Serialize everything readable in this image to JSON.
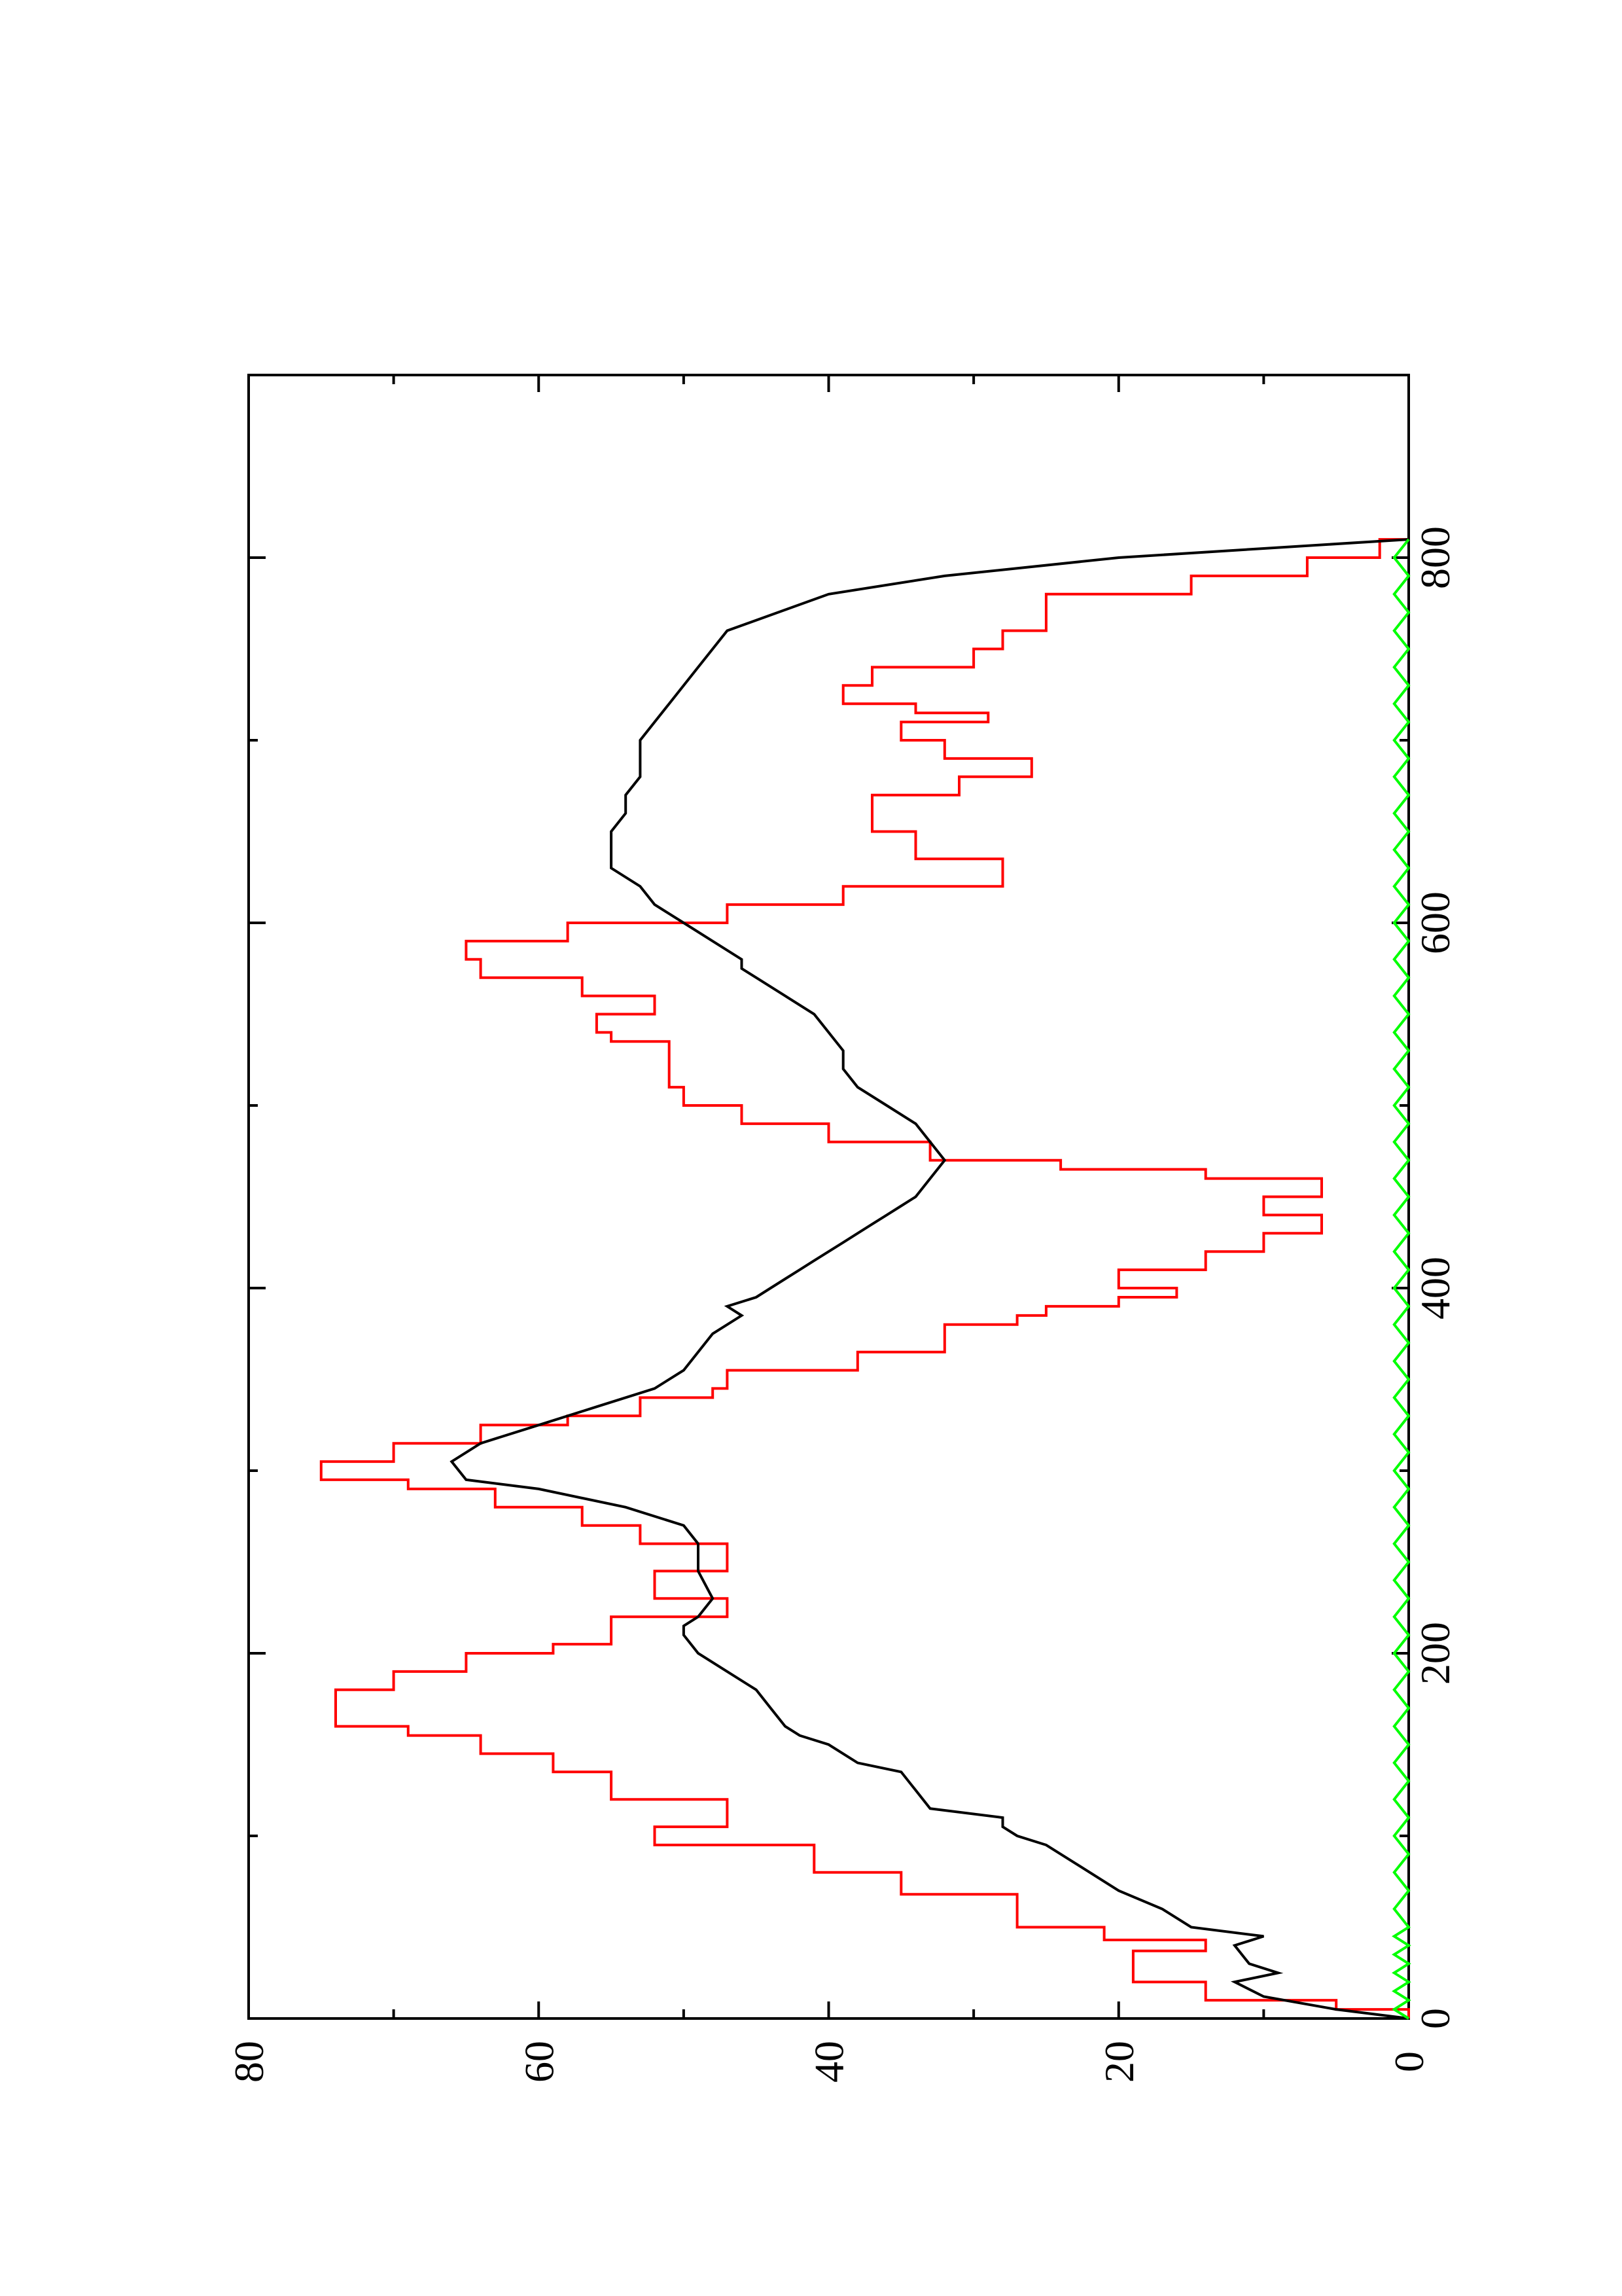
{
  "chart_data": {
    "type": "line",
    "orientation": "rotated 90 degrees counter-clockwise (x axis runs vertically, y axis horizontally)",
    "title": "",
    "xlabel": "",
    "ylabel": "",
    "xlim": [
      0,
      900
    ],
    "ylim": [
      0,
      80
    ],
    "x_ticks": [
      0,
      200,
      400,
      600,
      800
    ],
    "x_ticks_unlabeled": [
      100,
      300,
      500,
      700
    ],
    "y_ticks": [
      0,
      20,
      40,
      60,
      80
    ],
    "y_ticks_unlabeled": [
      10,
      30,
      50,
      70
    ],
    "grid": false,
    "legend": "none",
    "series": [
      {
        "color": "#ff0000",
        "step": true,
        "points": [
          [
            0,
            0
          ],
          [
            5,
            5
          ],
          [
            10,
            14
          ],
          [
            20,
            14
          ],
          [
            20,
            19
          ],
          [
            30,
            19
          ],
          [
            37,
            14
          ],
          [
            43,
            21
          ],
          [
            50,
            27
          ],
          [
            60,
            27
          ],
          [
            68,
            35
          ],
          [
            80,
            41
          ],
          [
            95,
            52
          ],
          [
            100,
            52
          ],
          [
            105,
            47
          ],
          [
            115,
            47
          ],
          [
            120,
            55
          ],
          [
            130,
            55
          ],
          [
            135,
            59
          ],
          [
            145,
            64
          ],
          [
            150,
            64
          ],
          [
            155,
            69
          ],
          [
            160,
            74
          ],
          [
            175,
            74
          ],
          [
            180,
            70
          ],
          [
            185,
            70
          ],
          [
            190,
            65
          ],
          [
            200,
            59
          ],
          [
            205,
            55
          ],
          [
            215,
            55
          ],
          [
            220,
            47
          ],
          [
            225,
            47
          ],
          [
            230,
            52
          ],
          [
            240,
            52
          ],
          [
            245,
            47
          ],
          [
            255,
            47
          ],
          [
            260,
            53
          ],
          [
            265,
            53
          ],
          [
            270,
            57
          ],
          [
            280,
            63
          ],
          [
            290,
            69
          ],
          [
            295,
            75
          ],
          [
            305,
            70
          ],
          [
            315,
            64
          ],
          [
            325,
            58
          ],
          [
            330,
            53
          ],
          [
            340,
            48
          ],
          [
            345,
            47
          ],
          [
            355,
            38
          ],
          [
            365,
            32
          ],
          [
            380,
            27
          ],
          [
            385,
            25
          ],
          [
            390,
            20
          ],
          [
            395,
            16
          ],
          [
            400,
            20
          ],
          [
            405,
            20
          ],
          [
            410,
            14
          ],
          [
            415,
            14
          ],
          [
            420,
            10
          ],
          [
            430,
            6
          ],
          [
            440,
            10
          ],
          [
            450,
            6
          ],
          [
            460,
            14
          ],
          [
            465,
            24
          ],
          [
            470,
            33
          ],
          [
            480,
            40
          ],
          [
            490,
            46
          ],
          [
            500,
            50
          ],
          [
            510,
            51
          ],
          [
            530,
            51
          ],
          [
            535,
            55
          ],
          [
            540,
            56
          ],
          [
            545,
            56
          ],
          [
            550,
            52
          ],
          [
            560,
            57
          ],
          [
            570,
            64
          ],
          [
            580,
            65
          ],
          [
            590,
            58
          ],
          [
            600,
            47
          ],
          [
            610,
            39
          ],
          [
            620,
            28
          ],
          [
            635,
            34
          ],
          [
            650,
            37
          ],
          [
            660,
            37
          ],
          [
            670,
            31
          ],
          [
            680,
            26
          ],
          [
            690,
            32
          ],
          [
            700,
            35
          ],
          [
            710,
            29
          ],
          [
            715,
            34
          ],
          [
            720,
            39
          ],
          [
            730,
            37
          ],
          [
            740,
            30
          ],
          [
            750,
            28
          ],
          [
            760,
            25
          ],
          [
            780,
            15
          ],
          [
            790,
            7
          ],
          [
            800,
            2
          ],
          [
            810,
            0
          ]
        ]
      },
      {
        "color": "#000000",
        "step": false,
        "points": [
          [
            0,
            0
          ],
          [
            5,
            5
          ],
          [
            12,
            10
          ],
          [
            20,
            12
          ],
          [
            25,
            9
          ],
          [
            30,
            11
          ],
          [
            40,
            12
          ],
          [
            45,
            10
          ],
          [
            50,
            15
          ],
          [
            60,
            17
          ],
          [
            70,
            20
          ],
          [
            85,
            23
          ],
          [
            95,
            25
          ],
          [
            100,
            27
          ],
          [
            105,
            28
          ],
          [
            110,
            28
          ],
          [
            115,
            33
          ],
          [
            125,
            34
          ],
          [
            135,
            35
          ],
          [
            140,
            38
          ],
          [
            150,
            40
          ],
          [
            155,
            42
          ],
          [
            160,
            43
          ],
          [
            170,
            44
          ],
          [
            180,
            45
          ],
          [
            190,
            47
          ],
          [
            200,
            49
          ],
          [
            210,
            50
          ],
          [
            215,
            50
          ],
          [
            220,
            49
          ],
          [
            230,
            48
          ],
          [
            245,
            49
          ],
          [
            260,
            49
          ],
          [
            270,
            50
          ],
          [
            280,
            54
          ],
          [
            290,
            60
          ],
          [
            295,
            65
          ],
          [
            305,
            66
          ],
          [
            315,
            64
          ],
          [
            325,
            60
          ],
          [
            335,
            56
          ],
          [
            345,
            52
          ],
          [
            355,
            50
          ],
          [
            365,
            49
          ],
          [
            375,
            48
          ],
          [
            385,
            46
          ],
          [
            390,
            47
          ],
          [
            395,
            45
          ],
          [
            400,
            44
          ],
          [
            405,
            43
          ],
          [
            410,
            42
          ],
          [
            415,
            41
          ],
          [
            420,
            40
          ],
          [
            425,
            39
          ],
          [
            430,
            38
          ],
          [
            435,
            37
          ],
          [
            440,
            36
          ],
          [
            445,
            35
          ],
          [
            450,
            34
          ],
          [
            460,
            33
          ],
          [
            470,
            32
          ],
          [
            480,
            33
          ],
          [
            490,
            34
          ],
          [
            500,
            36
          ],
          [
            510,
            38
          ],
          [
            520,
            39
          ],
          [
            530,
            39
          ],
          [
            540,
            40
          ],
          [
            550,
            41
          ],
          [
            560,
            43
          ],
          [
            570,
            45
          ],
          [
            575,
            46
          ],
          [
            580,
            46
          ],
          [
            590,
            48
          ],
          [
            600,
            50
          ],
          [
            610,
            52
          ],
          [
            620,
            53
          ],
          [
            630,
            55
          ],
          [
            640,
            55
          ],
          [
            650,
            55
          ],
          [
            660,
            54
          ],
          [
            670,
            54
          ],
          [
            680,
            53
          ],
          [
            690,
            53
          ],
          [
            700,
            53
          ],
          [
            710,
            52
          ],
          [
            720,
            51
          ],
          [
            730,
            50
          ],
          [
            740,
            49
          ],
          [
            750,
            48
          ],
          [
            760,
            47
          ],
          [
            780,
            40
          ],
          [
            790,
            32
          ],
          [
            800,
            20
          ],
          [
            805,
            10
          ],
          [
            810,
            0
          ]
        ]
      },
      {
        "color": "#00ff00",
        "step": false,
        "points": [
          [
            0,
            0
          ],
          [
            5,
            1
          ],
          [
            10,
            0
          ],
          [
            15,
            1
          ],
          [
            20,
            0
          ],
          [
            25,
            1
          ],
          [
            30,
            0
          ],
          [
            35,
            1
          ],
          [
            40,
            0
          ],
          [
            45,
            1
          ],
          [
            50,
            0
          ],
          [
            60,
            1
          ],
          [
            70,
            0
          ],
          [
            80,
            1
          ],
          [
            90,
            0
          ],
          [
            100,
            1
          ],
          [
            110,
            0
          ],
          [
            120,
            1
          ],
          [
            130,
            0
          ],
          [
            140,
            1
          ],
          [
            150,
            0
          ],
          [
            160,
            1
          ],
          [
            170,
            0
          ],
          [
            180,
            1
          ],
          [
            190,
            0
          ],
          [
            200,
            1
          ],
          [
            210,
            0
          ],
          [
            220,
            1
          ],
          [
            230,
            0
          ],
          [
            240,
            1
          ],
          [
            250,
            0
          ],
          [
            260,
            1
          ],
          [
            270,
            0
          ],
          [
            280,
            1
          ],
          [
            290,
            0
          ],
          [
            300,
            1
          ],
          [
            310,
            0
          ],
          [
            320,
            1
          ],
          [
            330,
            0
          ],
          [
            340,
            1
          ],
          [
            350,
            0
          ],
          [
            360,
            1
          ],
          [
            370,
            0
          ],
          [
            380,
            1
          ],
          [
            390,
            0
          ],
          [
            400,
            1
          ],
          [
            410,
            0
          ],
          [
            420,
            1
          ],
          [
            430,
            0
          ],
          [
            440,
            1
          ],
          [
            450,
            0
          ],
          [
            460,
            1
          ],
          [
            470,
            0
          ],
          [
            480,
            1
          ],
          [
            490,
            0
          ],
          [
            500,
            1
          ],
          [
            510,
            0
          ],
          [
            520,
            1
          ],
          [
            530,
            0
          ],
          [
            540,
            1
          ],
          [
            550,
            0
          ],
          [
            560,
            1
          ],
          [
            570,
            0
          ],
          [
            580,
            1
          ],
          [
            590,
            0
          ],
          [
            600,
            1
          ],
          [
            610,
            0
          ],
          [
            620,
            1
          ],
          [
            630,
            0
          ],
          [
            640,
            1
          ],
          [
            650,
            0
          ],
          [
            660,
            1
          ],
          [
            670,
            0
          ],
          [
            680,
            1
          ],
          [
            690,
            0
          ],
          [
            700,
            1
          ],
          [
            710,
            0
          ],
          [
            720,
            1
          ],
          [
            730,
            0
          ],
          [
            740,
            1
          ],
          [
            750,
            0
          ],
          [
            760,
            1
          ],
          [
            770,
            0
          ],
          [
            780,
            1
          ],
          [
            790,
            0
          ],
          [
            800,
            1
          ],
          [
            810,
            0
          ]
        ]
      }
    ]
  }
}
